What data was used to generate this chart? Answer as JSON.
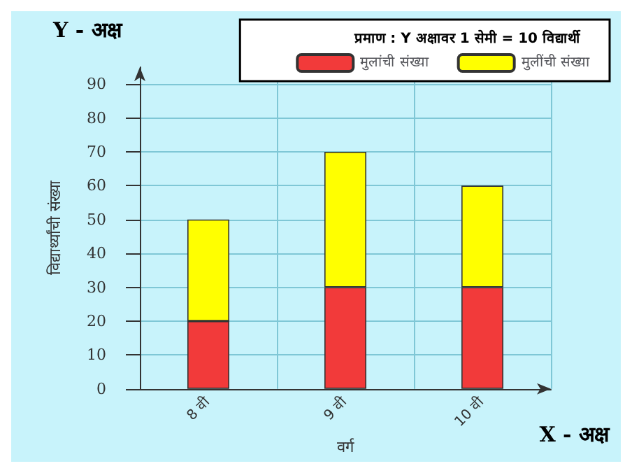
{
  "chart_data": {
    "type": "bar",
    "stacked": true,
    "legend_title": "प्रमाण : Y अक्षावर 1 सेमी = 10 विद्यार्थी",
    "xlabel": "वर्ग",
    "ylabel": "विद्यार्थ्यांची संख्या",
    "annotations": [
      "Y - अक्ष",
      "X - अक्ष"
    ],
    "categories": [
      "8 वी",
      "9 वी",
      "10 वी"
    ],
    "series": [
      {
        "name": "मुलांची संख्या",
        "color": "#f23a3a",
        "values": [
          20,
          30,
          30
        ]
      },
      {
        "name": "मुलींची संख्या",
        "color": "#ffff00",
        "values": [
          30,
          40,
          30
        ]
      }
    ],
    "ylim": [
      0,
      95
    ],
    "yticks": [
      0,
      10,
      20,
      30,
      40,
      50,
      60,
      70,
      80,
      90
    ],
    "grid": true,
    "legend": "top right"
  }
}
